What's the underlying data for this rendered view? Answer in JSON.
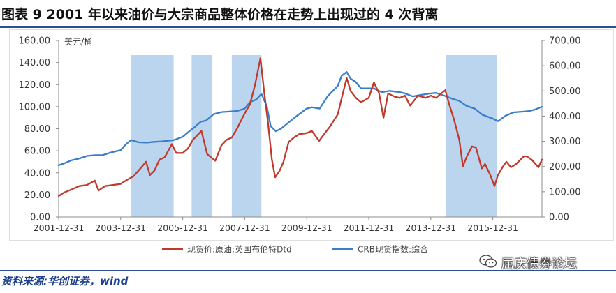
{
  "figure_title": "图表 9    2001 年以来油价与大宗商品整体价格在走势上出现过的 4 次背离",
  "source": "资料来源:华创证券，wind",
  "watermark": "屈庆债券论坛",
  "colors": {
    "oil": "#c0392b",
    "crb": "#3a7dc9",
    "shade": "#bcd5ee",
    "rule": "#2d4e8f"
  },
  "chart_data": {
    "type": "line",
    "title": "",
    "ylabel_left": "美元/桶",
    "ylabel_right": "",
    "xlim": [
      "2001-12-31",
      "2017-08-01"
    ],
    "ylim_left": [
      0,
      160
    ],
    "ylim_right": [
      0,
      700
    ],
    "x_ticks": [
      "2001-12-31",
      "2003-12-31",
      "2005-12-31",
      "2007-12-31",
      "2009-12-31",
      "2011-12-31",
      "2013-12-31",
      "2015-12-31"
    ],
    "y_ticks_left": [
      "0.00",
      "20.00",
      "40.00",
      "60.00",
      "80.00",
      "100.00",
      "120.00",
      "140.00",
      "160.00"
    ],
    "y_ticks_right": [
      "0.00",
      "100.00",
      "200.00",
      "300.00",
      "400.00",
      "500.00",
      "600.00",
      "700.00"
    ],
    "shaded_periods": [
      [
        "2004-05-01",
        "2005-09-15"
      ],
      [
        "2006-04-15",
        "2006-12-15"
      ],
      [
        "2007-08-01",
        "2008-07-15"
      ],
      [
        "2014-07-01",
        "2016-02-20"
      ]
    ],
    "series": [
      {
        "name": "现货价:原油:英国布伦特Dtd",
        "axis": "left",
        "x": [
          "2001-12-31",
          "2002-03-01",
          "2002-06-01",
          "2002-09-01",
          "2002-12-01",
          "2003-03-01",
          "2003-04-15",
          "2003-07-01",
          "2003-10-01",
          "2003-12-31",
          "2004-03-01",
          "2004-06-01",
          "2004-08-20",
          "2004-10-25",
          "2004-12-10",
          "2005-02-01",
          "2005-04-01",
          "2005-06-01",
          "2005-08-25",
          "2005-10-15",
          "2005-12-31",
          "2006-03-01",
          "2006-05-01",
          "2006-08-08",
          "2006-10-15",
          "2007-01-18",
          "2007-04-01",
          "2007-06-01",
          "2007-08-01",
          "2007-10-01",
          "2007-12-31",
          "2008-03-01",
          "2008-05-01",
          "2008-07-03",
          "2008-08-15",
          "2008-10-01",
          "2008-11-15",
          "2008-12-24",
          "2009-02-15",
          "2009-04-01",
          "2009-06-01",
          "2009-08-01",
          "2009-10-01",
          "2009-12-31",
          "2010-03-01",
          "2010-05-25",
          "2010-08-01",
          "2010-10-01",
          "2010-12-31",
          "2011-03-01",
          "2011-04-15",
          "2011-06-01",
          "2011-08-01",
          "2011-10-01",
          "2011-12-31",
          "2012-03-01",
          "2012-05-01",
          "2012-06-22",
          "2012-08-15",
          "2012-11-01",
          "2012-12-31",
          "2013-03-01",
          "2013-05-01",
          "2013-08-01",
          "2013-11-01",
          "2013-12-31",
          "2014-03-01",
          "2014-06-19",
          "2014-08-01",
          "2014-10-01",
          "2014-12-01",
          "2015-01-13",
          "2015-03-01",
          "2015-05-01",
          "2015-06-15",
          "2015-08-24",
          "2015-10-01",
          "2015-12-01",
          "2016-01-20",
          "2016-03-01",
          "2016-05-01",
          "2016-06-08",
          "2016-08-01",
          "2016-10-01",
          "2016-12-31",
          "2017-02-01",
          "2017-04-01",
          "2017-06-21",
          "2017-08-01"
        ],
        "values": [
          19,
          22,
          25,
          28,
          29,
          33,
          24,
          28,
          29,
          30,
          33,
          37,
          44,
          50,
          38,
          42,
          52,
          54,
          66,
          58,
          58,
          62,
          70,
          78,
          57,
          51,
          65,
          70,
          72,
          80,
          94,
          102,
          120,
          144,
          114,
          85,
          52,
          36,
          42,
          50,
          68,
          72,
          75,
          76,
          78,
          69,
          76,
          82,
          93,
          112,
          126,
          114,
          108,
          104,
          108,
          122,
          112,
          90,
          112,
          109,
          108,
          110,
          101,
          110,
          108,
          110,
          108,
          115,
          103,
          88,
          70,
          46,
          55,
          64,
          63,
          44,
          48,
          38,
          28,
          38,
          46,
          50,
          45,
          48,
          55,
          55,
          52,
          45,
          52
        ]
      },
      {
        "name": "CRB现货指数:综合",
        "axis": "right",
        "x": [
          "2001-12-31",
          "2002-03-01",
          "2002-06-01",
          "2002-09-01",
          "2002-12-01",
          "2003-03-01",
          "2003-06-01",
          "2003-09-01",
          "2003-12-31",
          "2004-03-01",
          "2004-05-01",
          "2004-08-01",
          "2004-11-01",
          "2005-02-01",
          "2005-05-01",
          "2005-09-15",
          "2005-12-31",
          "2006-03-01",
          "2006-05-15",
          "2006-08-01",
          "2006-10-01",
          "2007-01-01",
          "2007-04-01",
          "2007-07-01",
          "2007-10-01",
          "2007-12-31",
          "2008-03-01",
          "2008-05-15",
          "2008-07-15",
          "2008-09-15",
          "2008-11-01",
          "2008-12-31",
          "2009-03-01",
          "2009-06-01",
          "2009-09-01",
          "2009-12-31",
          "2010-03-01",
          "2010-06-01",
          "2010-09-01",
          "2010-12-31",
          "2011-02-15",
          "2011-04-15",
          "2011-06-01",
          "2011-08-01",
          "2011-10-01",
          "2011-12-31",
          "2012-03-01",
          "2012-06-01",
          "2012-09-01",
          "2012-12-31",
          "2013-03-01",
          "2013-06-01",
          "2013-09-01",
          "2013-12-31",
          "2014-03-01",
          "2014-06-01",
          "2014-09-01",
          "2014-12-01",
          "2015-03-01",
          "2015-06-01",
          "2015-09-01",
          "2015-12-31",
          "2016-03-01",
          "2016-06-01",
          "2016-09-01",
          "2016-12-31",
          "2017-03-01",
          "2017-05-01",
          "2017-08-01"
        ],
        "values": [
          205,
          212,
          225,
          232,
          242,
          245,
          245,
          255,
          265,
          288,
          305,
          296,
          295,
          298,
          300,
          305,
          318,
          335,
          355,
          378,
          382,
          408,
          416,
          418,
          420,
          430,
          455,
          466,
          488,
          440,
          360,
          340,
          350,
          375,
          400,
          430,
          435,
          430,
          478,
          520,
          560,
          575,
          548,
          535,
          510,
          510,
          510,
          495,
          500,
          495,
          490,
          478,
          484,
          490,
          492,
          482,
          470,
          460,
          440,
          430,
          405,
          390,
          380,
          402,
          415,
          418,
          420,
          425,
          437
        ]
      }
    ]
  }
}
